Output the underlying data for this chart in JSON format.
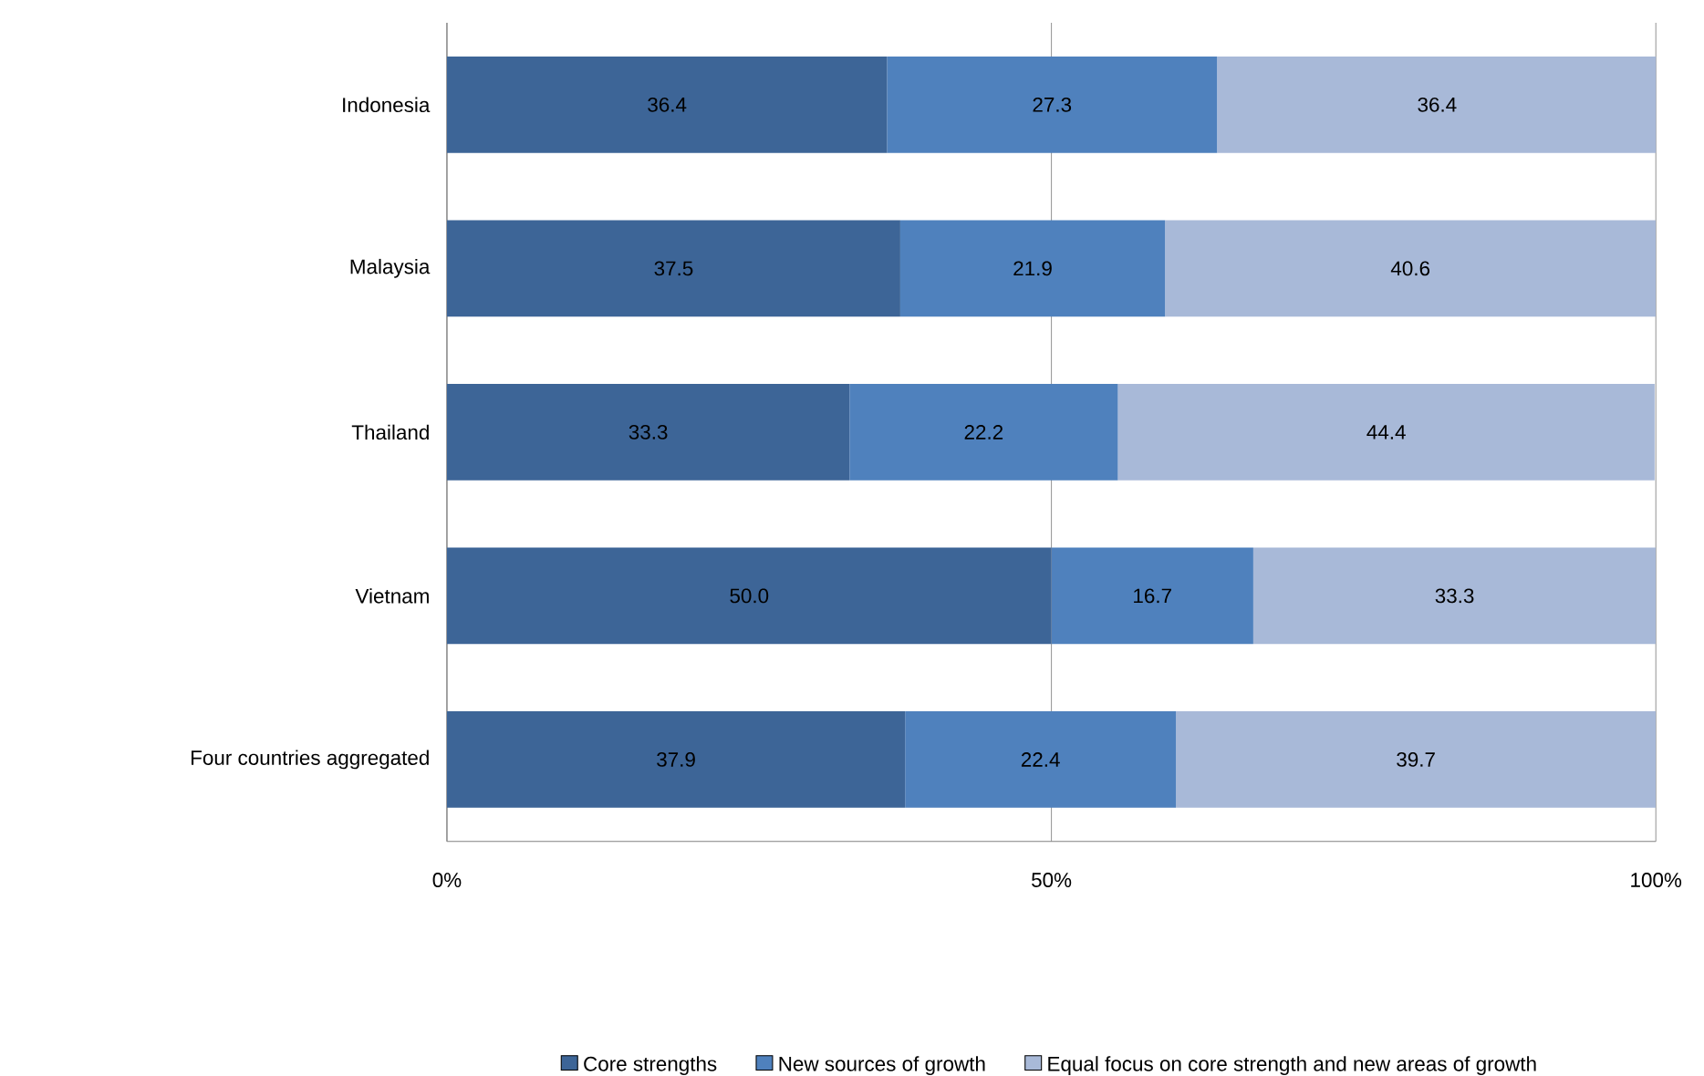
{
  "chart_data": {
    "type": "bar",
    "orientation": "horizontal",
    "stacked": true,
    "categories": [
      "Indonesia",
      "Malaysia",
      "Thailand",
      "Vietnam",
      "Four countries aggregated"
    ],
    "series": [
      {
        "name": "Core strengths",
        "color": "#3d6597",
        "values": [
          36.4,
          37.5,
          33.3,
          50.0,
          37.9
        ],
        "value_labels": [
          "36.4",
          "37.5",
          "33.3",
          "50.0",
          "37.9"
        ]
      },
      {
        "name": "New sources of growth",
        "color": "#4f81bd",
        "values": [
          27.3,
          21.9,
          22.2,
          16.7,
          22.4
        ],
        "value_labels": [
          "27.3",
          "21.9",
          "22.2",
          "16.7",
          "22.4"
        ]
      },
      {
        "name": "Equal focus on core strength and new areas of growth",
        "color": "#a8b9d8",
        "values": [
          36.4,
          40.6,
          44.4,
          33.3,
          39.7
        ],
        "value_labels": [
          "36.4",
          "40.6",
          "44.4",
          "33.3",
          "39.7"
        ]
      }
    ],
    "xlim": [
      0,
      100
    ],
    "xticks": [
      {
        "value": 0,
        "label": "0%"
      },
      {
        "value": 50,
        "label": "50%"
      },
      {
        "value": 100,
        "label": "100%"
      }
    ],
    "grid": "x",
    "legend": "bottom"
  }
}
